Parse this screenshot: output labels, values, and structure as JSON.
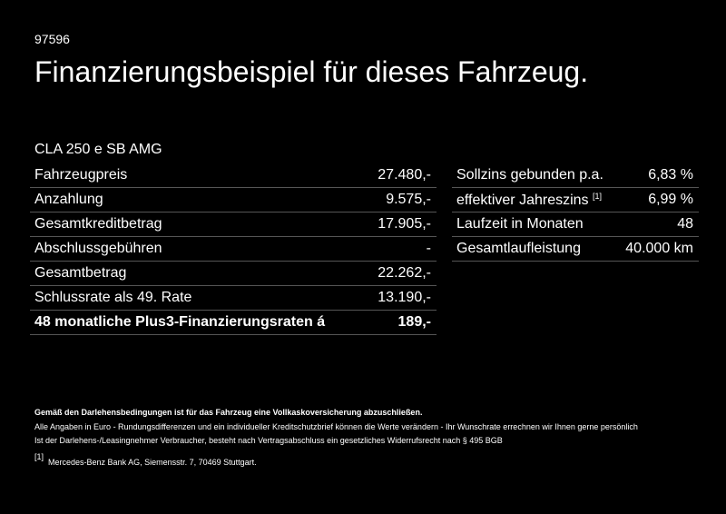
{
  "doc_id": "97596",
  "title": "Finanzierungsbeispiel für dieses Fahrzeug.",
  "model": "CLA 250 e SB AMG",
  "left_table": [
    {
      "label": "Fahrzeugpreis",
      "value": "27.480,-"
    },
    {
      "label": "Anzahlung",
      "value": "9.575,-"
    },
    {
      "label": "Gesamtkreditbetrag",
      "value": "17.905,-"
    },
    {
      "label": "Abschlussgebühren",
      "value": "-"
    },
    {
      "label": "Gesamtbetrag",
      "value": "22.262,-"
    },
    {
      "label": "Schlussrate als 49. Rate",
      "value": "13.190,-"
    },
    {
      "label": "48 monatliche Plus3-Finanzierungsraten á",
      "value": "189,-"
    }
  ],
  "right_table": [
    {
      "label": "Sollzins gebunden p.a.",
      "sup": "",
      "value": "6,83 %"
    },
    {
      "label": "effektiver Jahreszins",
      "sup": "[1]",
      "value": "6,99 %"
    },
    {
      "label": "Laufzeit in Monaten",
      "sup": "",
      "value": "48"
    },
    {
      "label": "Gesamtlaufleistung",
      "sup": "",
      "value": "40.000 km"
    }
  ],
  "footer": {
    "notice": "Gemäß den Darlehensbedingungen ist für das Fahrzeug eine Vollkaskoversicherung abzuschließen.",
    "line1": "Alle Angaben in Euro - Rundungsdifferenzen und ein individueller Kreditschutzbrief können die Werte verändern - Ihr Wunschrate errechnen wir Ihnen gerne persönlich",
    "line2": "Ist der Darlehens-/Leasingnehmer Verbraucher, besteht nach Vertragsabschluss ein gesetzliches Widerrufsrecht nach § 495 BGB",
    "footnote_mark": "[1]",
    "footnote_text": "Mercedes-Benz Bank AG, Siemensstr. 7, 70469 Stuttgart."
  }
}
